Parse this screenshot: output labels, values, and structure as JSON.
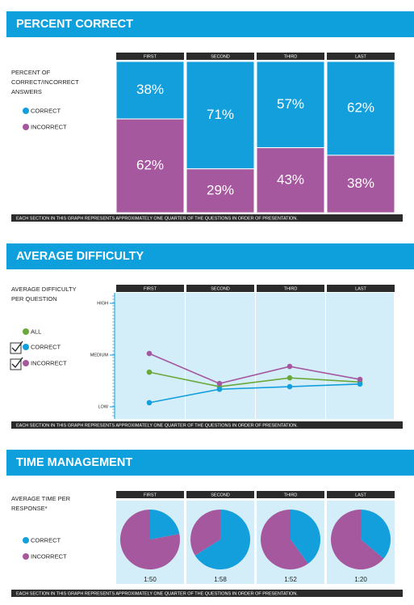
{
  "chart_data": [
    {
      "type": "bar",
      "stacked": true,
      "title": "PERCENT CORRECT",
      "subtitle": "PERCENT OF CORRECT/INCORRECT ANSWERS",
      "categories": [
        "FIRST",
        "SECOND",
        "THIRD",
        "LAST"
      ],
      "series": [
        {
          "name": "CORRECT",
          "color": "#129fdc",
          "values": [
            38,
            71,
            57,
            62
          ],
          "value_labels": [
            "38%",
            "71%",
            "57%",
            "62%"
          ]
        },
        {
          "name": "INCORRECT",
          "color": "#a5589e",
          "values": [
            62,
            29,
            43,
            38
          ],
          "value_labels": [
            "62%",
            "29%",
            "43%",
            "38%"
          ]
        }
      ],
      "ylim": [
        0,
        100
      ],
      "note": "EACH SECTION IN THIS GRAPH REPRESENTS APPROXIMATELY ONE QUARTER OF THE QUESTIONS IN ORDER OF PRESENTATION."
    },
    {
      "type": "line",
      "title": "AVERAGE DIFFICULTY",
      "subtitle": "AVERAGE DIFFICULTY PER QUESTION",
      "categories": [
        "FIRST",
        "SECOND",
        "THIRD",
        "LAST"
      ],
      "series": [
        {
          "name": "ALL",
          "color": "#6aa83a",
          "values": [
            1.67,
            1.39,
            1.56,
            1.48
          ]
        },
        {
          "name": "CORRECT",
          "color": "#129fdc",
          "values": [
            1.08,
            1.34,
            1.39,
            1.44
          ]
        },
        {
          "name": "INCORRECT",
          "color": "#a5589e",
          "values": [
            2.03,
            1.45,
            1.78,
            1.53
          ]
        }
      ],
      "ylim": [
        1,
        3
      ],
      "yticks": [
        {
          "value": 1,
          "label": "LOW"
        },
        {
          "value": 2,
          "label": "MEDIUM"
        },
        {
          "value": 3,
          "label": "HIGH"
        }
      ],
      "note": "EACH SECTION IN THIS GRAPH REPRESENTS APPROXIMATELY ONE QUARTER OF THE QUESTIONS IN ORDER OF PRESENTATION."
    },
    {
      "type": "pie",
      "title": "TIME MANAGEMENT",
      "subtitle": "AVERAGE TIME PER RESPONSE*",
      "categories": [
        "FIRST",
        "SECOND",
        "THIRD",
        "LAST"
      ],
      "series": [
        {
          "name": "CORRECT",
          "color": "#129fdc",
          "values": [
            22,
            66,
            40,
            36
          ]
        },
        {
          "name": "INCORRECT",
          "color": "#a5589e",
          "values": [
            78,
            34,
            60,
            64
          ]
        }
      ],
      "time_labels": [
        "1:50",
        "1:58",
        "1:52",
        "1:20"
      ],
      "note": "EACH SECTION IN THIS GRAPH REPRESENTS APPROXIMATELY ONE QUARTER OF THE QUESTIONS IN ORDER OF PRESENTATION."
    }
  ]
}
